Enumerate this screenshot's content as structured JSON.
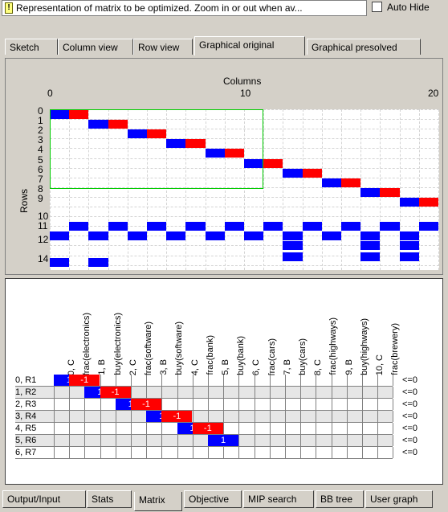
{
  "header": {
    "message": "Representation of matrix to be optimized. Zoom in or out when av...",
    "autohide_label": "Auto Hide",
    "autohide_checked": false
  },
  "top_tabs": [
    {
      "label": "Sketch",
      "active": false
    },
    {
      "label": "Column view",
      "active": false
    },
    {
      "label": "Row view",
      "active": false
    },
    {
      "label": "Graphical original",
      "active": true
    },
    {
      "label": "Graphical presolved",
      "active": false
    }
  ],
  "graph": {
    "columns_label": "Columns",
    "rows_label": "Rows",
    "col_ticks": [
      "0",
      "10",
      "20"
    ],
    "row_ticks": [
      "0",
      "1",
      "2",
      "3",
      "4",
      "5",
      "6",
      "7",
      "8",
      "9",
      "10",
      "11",
      "12",
      "14"
    ]
  },
  "matrix": {
    "columns": [
      "0, C",
      "frac(electronics)",
      "1, B",
      "buy(electronics)",
      "2, C",
      "frac(software)",
      "3, B",
      "buy(software)",
      "4, C",
      "frac(bank)",
      "5, B",
      "buy(bank)",
      "6, C",
      "frac(cars)",
      "7, B",
      "buy(cars)",
      "8, C",
      "frac(highways)",
      "9, B",
      "buy(highways)",
      "10, C",
      "frac(brewery)"
    ],
    "rows": [
      {
        "name": "0,   R1",
        "relation": "<=0"
      },
      {
        "name": "1,   R2",
        "relation": "<=0"
      },
      {
        "name": "2,   R3",
        "relation": "<=0"
      },
      {
        "name": "3,   R4",
        "relation": "<=0"
      },
      {
        "name": "4,   R5",
        "relation": "<=0"
      },
      {
        "name": "5,   R6",
        "relation": "<=0"
      },
      {
        "name": "6,   R7",
        "relation": "<=0"
      }
    ],
    "cells": [
      {
        "row": 0,
        "col": 0,
        "value": "1"
      },
      {
        "row": 0,
        "col": 1,
        "value": "-1"
      },
      {
        "row": 1,
        "col": 2,
        "value": "1"
      },
      {
        "row": 1,
        "col": 3,
        "value": "-1"
      },
      {
        "row": 2,
        "col": 4,
        "value": "1"
      },
      {
        "row": 2,
        "col": 5,
        "value": "-1"
      },
      {
        "row": 3,
        "col": 6,
        "value": "1"
      },
      {
        "row": 3,
        "col": 7,
        "value": "-1"
      },
      {
        "row": 4,
        "col": 8,
        "value": "1"
      },
      {
        "row": 4,
        "col": 9,
        "value": "-1"
      },
      {
        "row": 5,
        "col": 10,
        "value": "1"
      }
    ]
  },
  "bottom_tabs": [
    {
      "label": "Output/Input",
      "active": false
    },
    {
      "label": "Stats",
      "active": false
    },
    {
      "label": "Matrix",
      "active": true
    },
    {
      "label": "Objective",
      "active": false
    },
    {
      "label": "MIP search",
      "active": false
    },
    {
      "label": "BB tree",
      "active": false
    },
    {
      "label": "User graph",
      "active": false
    }
  ],
  "colors": {
    "positive": "#0000ff",
    "negative": "#ff0000",
    "selection": "#00cc00"
  }
}
